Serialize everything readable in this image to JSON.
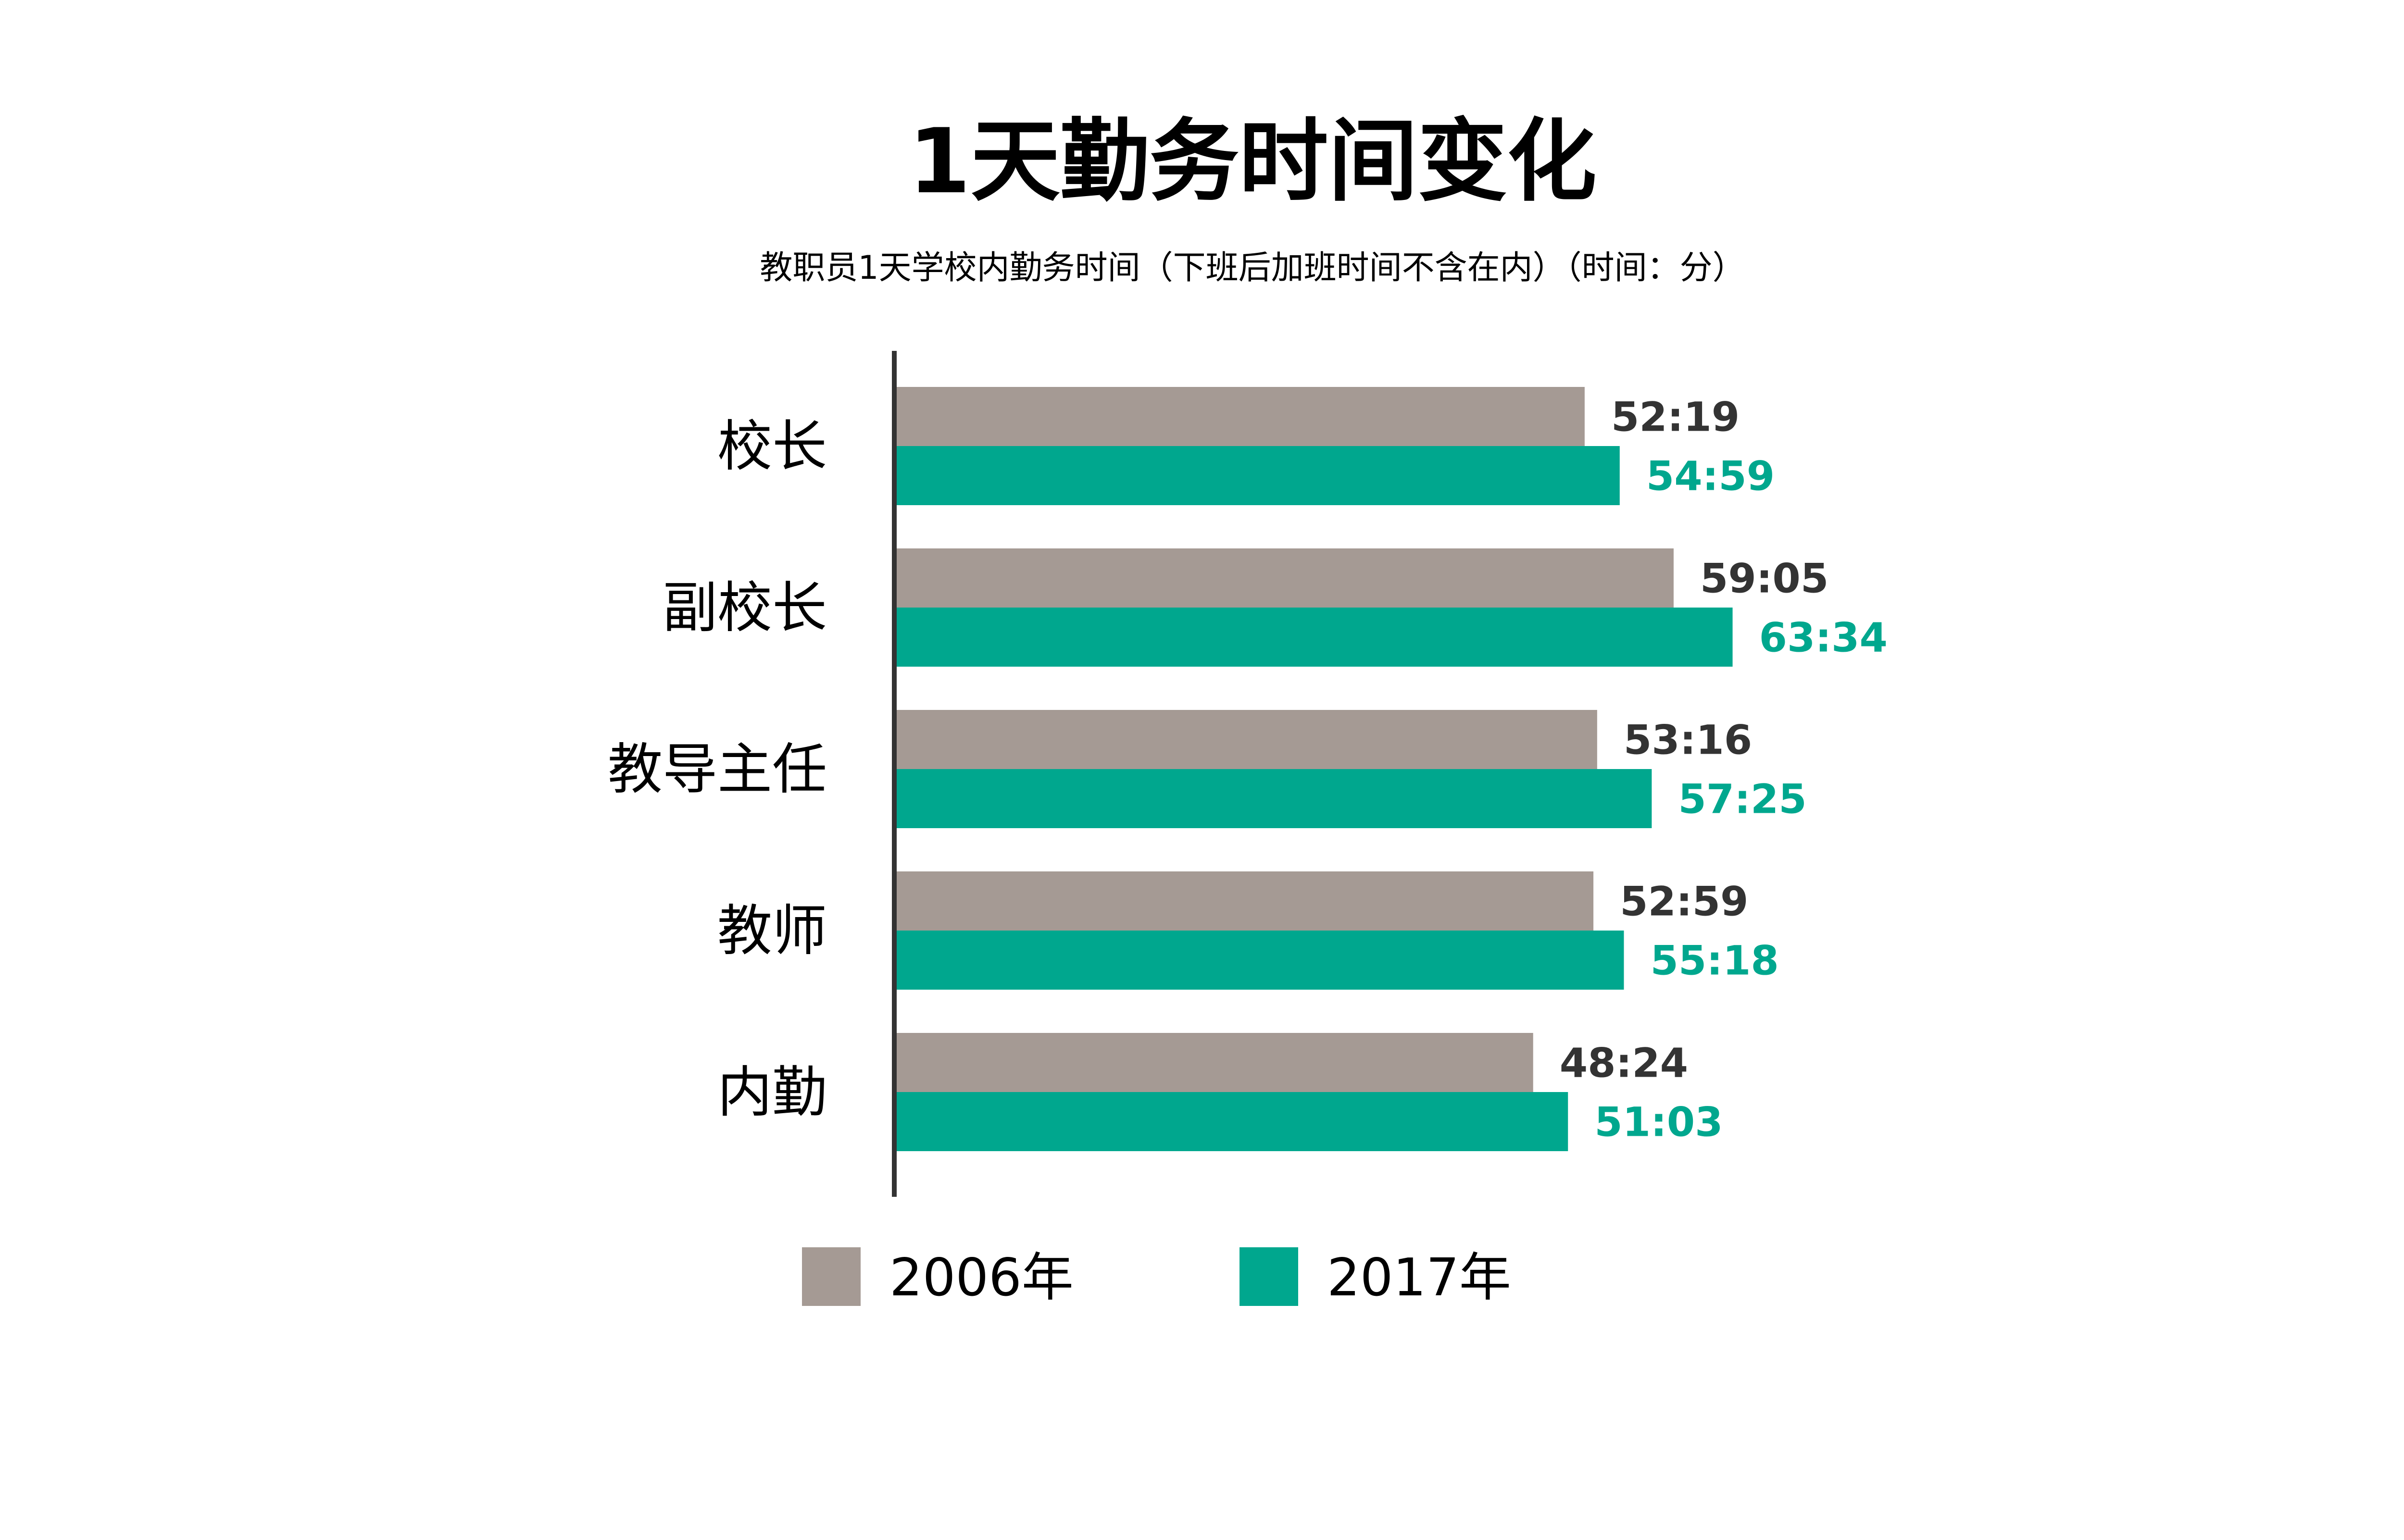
{
  "chart_data": {
    "type": "bar",
    "orientation": "horizontal",
    "title": "1天勤务时间变化",
    "subtitle": "教职员1天学校内勤务时间（下班后加班时间不含在内）（时间：分）",
    "xlabel": "",
    "ylabel": "",
    "grid": false,
    "legend_position": "bottom",
    "categories": [
      "校长",
      "副校长",
      "教导主任",
      "教师",
      "内勤"
    ],
    "series": [
      {
        "name": "2006年",
        "color": "#a59a94",
        "values": [
          52.317,
          59.083,
          53.267,
          52.983,
          48.4
        ],
        "labels": [
          "52:19",
          "59:05",
          "53:16",
          "52:59",
          "48:24"
        ]
      },
      {
        "name": "2017年",
        "color": "#00a78e",
        "values": [
          54.983,
          63.567,
          57.417,
          55.3,
          51.05
        ],
        "labels": [
          "54:59",
          "63:34",
          "57:25",
          "55:18",
          "51:03"
        ]
      }
    ],
    "xlim": [
      0,
      70
    ]
  },
  "colors": {
    "axis": "#333333",
    "title_text": "#000000",
    "label_text_2006": "#333333",
    "label_text_2017": "#00a78e"
  }
}
